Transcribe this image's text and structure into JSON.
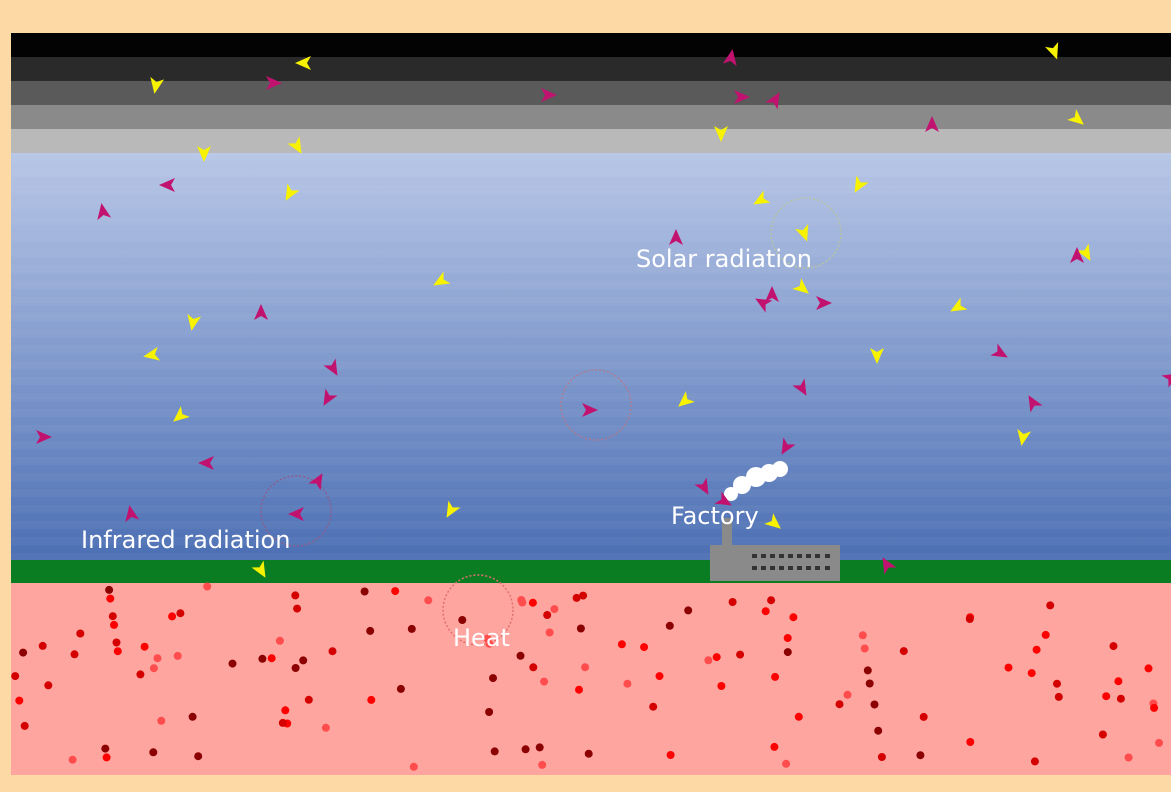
{
  "labels": {
    "solar_radiation": "Solar radiation",
    "infrared_radiation": "Infrared radiation",
    "factory": "Factory",
    "heat": "Heat"
  },
  "colors": {
    "frame": "#fdd9a5",
    "ground": "#0a7d23",
    "earth": "#fea5a0",
    "sunlight_photon": "#f7f200",
    "infrared_photon": "#c2126f",
    "factory_building": "#8a8a8a",
    "smoke": "#ffffff",
    "heat_particles": [
      "#ff0000",
      "#d40000",
      "#8b0000",
      "#ff4c4c"
    ]
  },
  "icons": {
    "sunlight_photon": "yellow-arrowhead-icon",
    "infrared_photon": "magenta-arrowhead-icon",
    "factory": "factory-icon",
    "smoke": "smoke-cloud-icon",
    "heat_particle": "red-dot-icon"
  }
}
